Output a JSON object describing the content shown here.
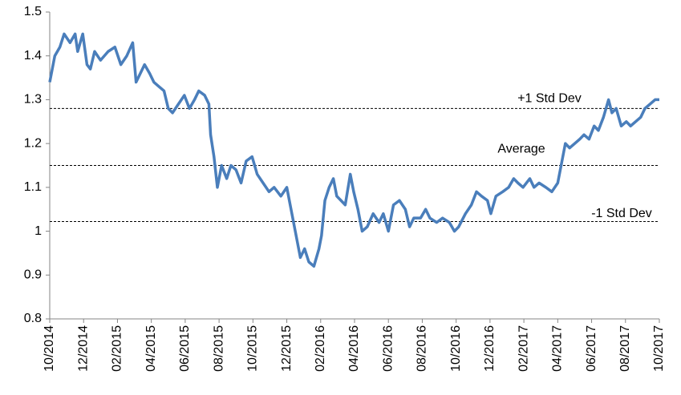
{
  "chart_data": {
    "type": "line",
    "x": [
      0,
      0.3,
      0.6,
      0.85,
      1.2,
      1.5,
      1.65,
      1.95,
      2.2,
      2.4,
      2.65,
      3.0,
      3.45,
      3.85,
      4.2,
      4.55,
      4.9,
      5.1,
      5.35,
      5.6,
      5.9,
      6.15,
      6.45,
      6.75,
      7.0,
      7.25,
      7.6,
      7.95,
      8.25,
      8.55,
      8.8,
      9.15,
      9.4,
      9.5,
      9.7,
      9.9,
      10.15,
      10.45,
      10.7,
      11.0,
      11.3,
      11.6,
      11.95,
      12.25,
      12.6,
      12.95,
      13.25,
      13.65,
      14.0,
      14.25,
      14.5,
      14.8,
      15.05,
      15.3,
      15.6,
      15.9,
      16.05,
      16.25,
      16.5,
      16.75,
      16.95,
      17.2,
      17.45,
      17.75,
      17.95,
      18.2,
      18.45,
      18.75,
      19.1,
      19.45,
      19.7,
      20.0,
      20.3,
      20.65,
      21.0,
      21.25,
      21.5,
      21.9,
      22.2,
      22.45,
      22.85,
      23.2,
      23.6,
      23.9,
      24.15,
      24.55,
      24.9,
      25.2,
      25.5,
      25.85,
      26.05,
      26.35,
      26.75,
      27.1,
      27.4,
      27.65,
      27.95,
      28.35,
      28.6,
      28.9,
      29.3,
      29.65,
      30.0,
      30.25,
      30.45,
      30.7,
      31.0,
      31.3,
      31.55,
      31.85,
      32.15,
      32.4,
      32.7,
      33.0,
      33.2,
      33.45,
      33.75,
      34.05,
      34.3,
      34.6,
      34.9,
      35.15,
      35.45,
      35.75,
      36.0
    ],
    "series": [
      {
        "color": "#4a7ebb",
        "values": [
          1.34,
          1.4,
          1.42,
          1.45,
          1.43,
          1.45,
          1.41,
          1.45,
          1.38,
          1.37,
          1.41,
          1.39,
          1.41,
          1.42,
          1.38,
          1.4,
          1.43,
          1.34,
          1.36,
          1.38,
          1.36,
          1.34,
          1.33,
          1.32,
          1.28,
          1.27,
          1.29,
          1.31,
          1.28,
          1.3,
          1.32,
          1.31,
          1.29,
          1.22,
          1.17,
          1.1,
          1.15,
          1.12,
          1.15,
          1.14,
          1.11,
          1.16,
          1.17,
          1.13,
          1.11,
          1.09,
          1.1,
          1.08,
          1.1,
          1.05,
          1.0,
          0.94,
          0.96,
          0.93,
          0.92,
          0.96,
          0.99,
          1.07,
          1.1,
          1.12,
          1.08,
          1.07,
          1.06,
          1.13,
          1.09,
          1.05,
          1.0,
          1.01,
          1.04,
          1.02,
          1.04,
          1.0,
          1.06,
          1.07,
          1.05,
          1.01,
          1.03,
          1.03,
          1.05,
          1.03,
          1.02,
          1.03,
          1.02,
          1.0,
          1.01,
          1.04,
          1.06,
          1.09,
          1.08,
          1.07,
          1.04,
          1.08,
          1.09,
          1.1,
          1.12,
          1.11,
          1.1,
          1.12,
          1.1,
          1.11,
          1.1,
          1.09,
          1.11,
          1.16,
          1.2,
          1.19,
          1.2,
          1.21,
          1.22,
          1.21,
          1.24,
          1.23,
          1.26,
          1.3,
          1.27,
          1.28,
          1.24,
          1.25,
          1.24,
          1.25,
          1.26,
          1.28,
          1.29,
          1.3,
          1.3
        ]
      }
    ],
    "xlim": [
      0,
      36
    ],
    "xticks": [
      {
        "value": 0,
        "label": "10/2014"
      },
      {
        "value": 2,
        "label": "12/2014"
      },
      {
        "value": 4,
        "label": "02/2015"
      },
      {
        "value": 6,
        "label": "04/2015"
      },
      {
        "value": 8,
        "label": "06/2015"
      },
      {
        "value": 10,
        "label": "08/2015"
      },
      {
        "value": 12,
        "label": "10/2015"
      },
      {
        "value": 14,
        "label": "12/2015"
      },
      {
        "value": 16,
        "label": "02/2016"
      },
      {
        "value": 18,
        "label": "04/2016"
      },
      {
        "value": 20,
        "label": "06/2016"
      },
      {
        "value": 22,
        "label": "08/2016"
      },
      {
        "value": 24,
        "label": "10/2016"
      },
      {
        "value": 26,
        "label": "12/2016"
      },
      {
        "value": 28,
        "label": "02/2017"
      },
      {
        "value": 30,
        "label": "04/2017"
      },
      {
        "value": 32,
        "label": "06/2017"
      },
      {
        "value": 34,
        "label": "08/2017"
      },
      {
        "value": 36,
        "label": "10/2017"
      }
    ],
    "ylim": [
      0.8,
      1.5
    ],
    "yticks": [
      0.8,
      0.9,
      1,
      1.1,
      1.2,
      1.3,
      1.4,
      1.5
    ],
    "reference_lines": [
      {
        "label": "+1 Std Dev",
        "value": 1.28
      },
      {
        "label": "Average",
        "value": 1.15
      },
      {
        "label": "-1 Std Dev",
        "value": 1.022
      }
    ]
  }
}
